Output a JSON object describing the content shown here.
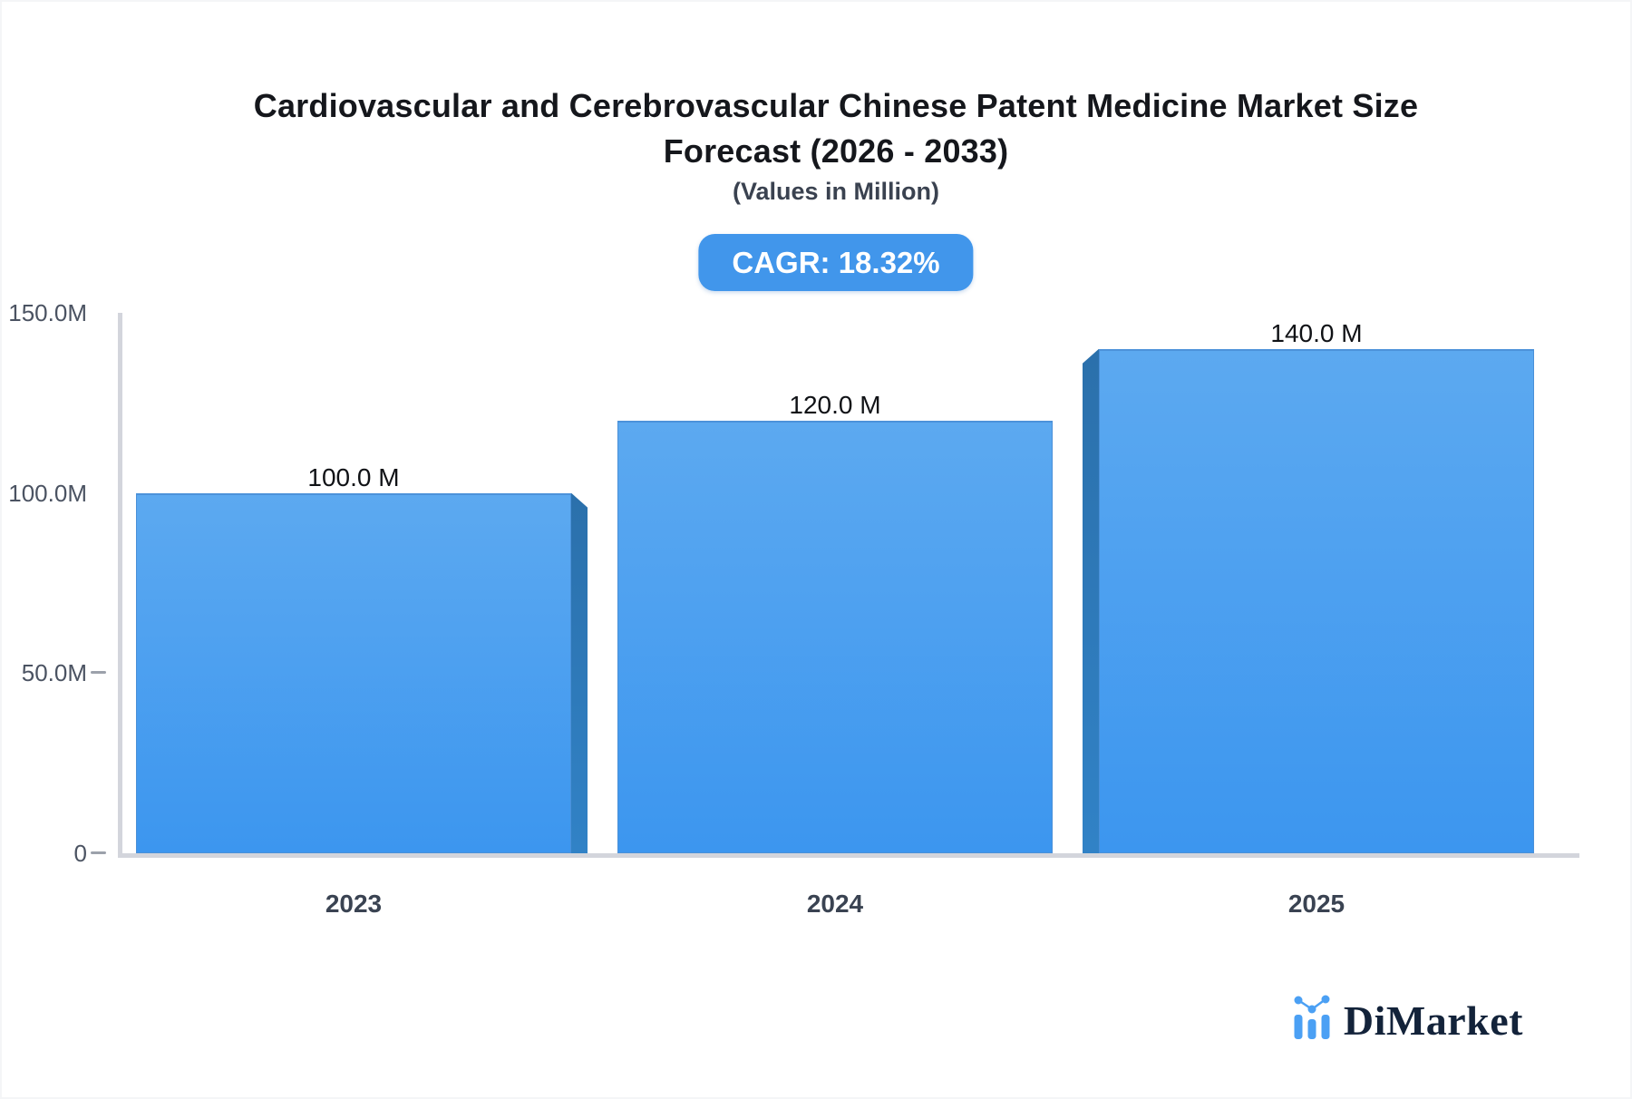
{
  "header": {
    "title_line1": "Cardiovascular and Cerebrovascular Chinese Patent Medicine Market Size",
    "title_line2": "Forecast (2026 - 2033)",
    "subtitle": "(Values in Million)",
    "cagr_badge": "CAGR: 18.32%"
  },
  "chart_data": {
    "type": "bar",
    "title": "Cardiovascular and Cerebrovascular Chinese Patent Medicine Market Size Forecast (2026 - 2033)",
    "subtitle": "(Values in Million)",
    "cagr_percent": "18.32%",
    "categories": [
      "2023",
      "2024",
      "2025"
    ],
    "values": [
      100.0,
      120.0,
      140.0
    ],
    "value_labels": [
      "100.0 M",
      "120.0 M",
      "140.0 M"
    ],
    "unit": "Million",
    "ylim": [
      0,
      150
    ],
    "yticks": [
      {
        "value": 150,
        "label": "150.0M",
        "dash": false
      },
      {
        "value": 100,
        "label": "100.0M",
        "dash": false
      },
      {
        "value": 50,
        "label": "50.0M",
        "dash": true
      },
      {
        "value": 0,
        "label": "0",
        "dash": true
      }
    ],
    "grid": false,
    "legend": false
  },
  "colors": {
    "bar_face_top": "#5CA9F0",
    "bar_face_bottom": "#3C96EF",
    "bar_side_top": "#2B70AB",
    "bar_side_bottom": "#3182C6",
    "badge_bg": "#4196EB",
    "axis_line": "#D3D5DC",
    "logo_blue": "#4BA0F4",
    "logo_text": "#13233A"
  },
  "logo": {
    "brand": "DiMarket",
    "icon": "mini-bar-line-chart-icon"
  }
}
